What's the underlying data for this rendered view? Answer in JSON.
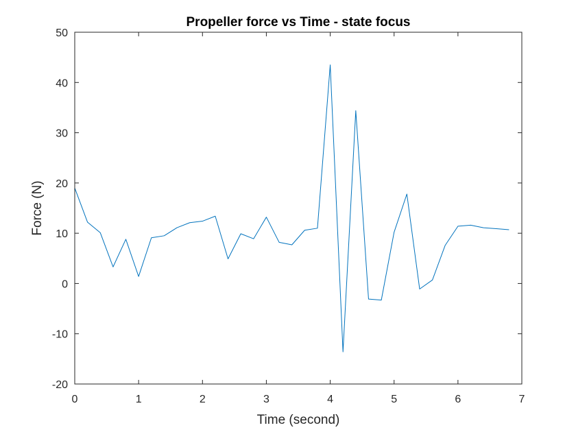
{
  "chart_data": {
    "type": "line",
    "title": "Propeller force vs Time - state focus",
    "xlabel": "Time (second)",
    "ylabel": "Force (N)",
    "xlim": [
      0,
      7
    ],
    "ylim": [
      -20,
      50
    ],
    "xticks": [
      0,
      1,
      2,
      3,
      4,
      5,
      6,
      7
    ],
    "yticks": [
      -20,
      -10,
      0,
      10,
      20,
      30,
      40,
      50
    ],
    "grid": false,
    "legend": "none",
    "series": [
      {
        "color": "#0072BD",
        "x": [
          0,
          0.2,
          0.4,
          0.6,
          0.8,
          1.0,
          1.2,
          1.4,
          1.6,
          1.8,
          2.0,
          2.2,
          2.4,
          2.6,
          2.8,
          3.0,
          3.2,
          3.4,
          3.6,
          3.8,
          4.0,
          4.2,
          4.4,
          4.6,
          4.8,
          5.0,
          5.2,
          5.4,
          5.6,
          5.8,
          6.0,
          6.2,
          6.4,
          6.6,
          6.8
        ],
        "y": [
          19.0,
          12.2,
          10.1,
          3.3,
          8.8,
          1.4,
          9.1,
          9.5,
          11.1,
          12.1,
          12.4,
          13.4,
          4.9,
          9.9,
          8.9,
          13.2,
          8.2,
          7.7,
          10.6,
          11.0,
          43.5,
          -13.6,
          34.4,
          -3.1,
          -3.3,
          10.2,
          17.8,
          -1.1,
          0.7,
          7.6,
          11.4,
          11.6,
          11.1,
          10.9,
          10.7
        ]
      }
    ]
  }
}
